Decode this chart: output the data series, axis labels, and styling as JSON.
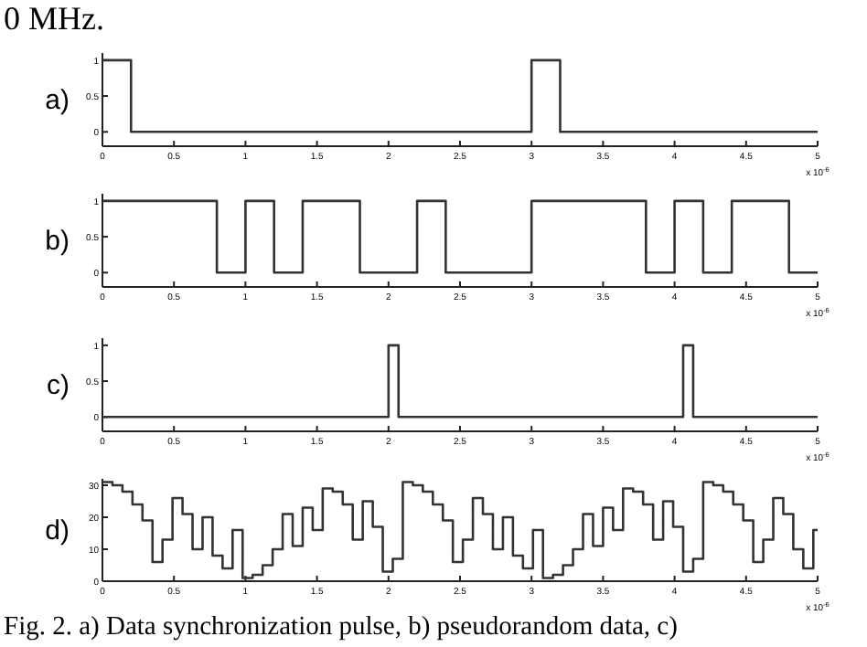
{
  "chart_data": [
    {
      "type": "step",
      "ylabel": "a)",
      "xlabel": "x 10$^{-6}$",
      "color": "#333333",
      "annotations": [
        "0 MHz."
      ],
      "x": [
        0,
        0.2,
        3.0,
        3.2,
        5
      ],
      "values": [
        1,
        0,
        1,
        0,
        0
      ],
      "xlim": [
        0,
        5
      ],
      "xticks": [
        0,
        0.5,
        1,
        1.5,
        2,
        2.5,
        3,
        3.5,
        4,
        4.5,
        5
      ],
      "ylim": [
        -0.2,
        1.1
      ],
      "yticks": [
        0,
        0.5,
        1
      ]
    },
    {
      "type": "step",
      "ylabel": "b)",
      "xlabel": "x 10$^{-6}$",
      "color": "#333333",
      "x": [
        0,
        0.8,
        1.0,
        1.2,
        1.4,
        1.8,
        2.2,
        2.4,
        3.0,
        3.8,
        4.0,
        4.2,
        4.4,
        4.8,
        5
      ],
      "values": [
        1,
        0,
        1,
        0,
        1,
        0,
        1,
        0,
        1,
        0,
        1,
        0,
        1,
        0,
        0
      ],
      "xlim": [
        0,
        5
      ],
      "xticks": [
        0,
        0.5,
        1,
        1.5,
        2,
        2.5,
        3,
        3.5,
        4,
        4.5,
        5
      ],
      "ylim": [
        -0.2,
        1.1
      ],
      "yticks": [
        0,
        0.5,
        1
      ]
    },
    {
      "type": "step",
      "ylabel": "c)",
      "xlabel": "x 10$^{-6}$",
      "color": "#333333",
      "x": [
        0,
        2.0,
        2.07,
        4.06,
        4.13,
        5
      ],
      "values": [
        0,
        1,
        0,
        1,
        0,
        0
      ],
      "xlim": [
        0,
        5
      ],
      "xticks": [
        0,
        0.5,
        1,
        1.5,
        2,
        2.5,
        3,
        3.5,
        4,
        4.5,
        5
      ],
      "ylim": [
        -0.2,
        1.1
      ],
      "yticks": [
        0,
        0.5,
        1
      ]
    },
    {
      "type": "step",
      "ylabel": "d)",
      "xlabel": "x 10$^{-6}$",
      "color": "#333333",
      "annotations": [
        "Fig. 2. a) Data synchronization pulse, b) pseudorandom data, c)"
      ],
      "x": [
        0,
        0.07,
        0.14,
        0.21,
        0.28,
        0.35,
        0.42,
        0.49,
        0.56,
        0.63,
        0.7,
        0.77,
        0.84,
        0.91,
        0.98,
        1.05,
        1.12,
        1.19,
        1.26,
        1.33,
        1.4,
        1.47,
        1.54,
        1.61,
        1.68,
        1.75,
        1.82,
        1.89,
        1.96,
        2.03,
        2.1,
        2.17,
        2.24,
        2.31,
        2.38,
        2.45,
        2.52,
        2.59,
        2.66,
        2.73,
        2.8,
        2.87,
        2.94,
        3.01,
        3.08,
        3.15,
        3.22,
        3.29,
        3.36,
        3.43,
        3.5,
        3.57,
        3.64,
        3.71,
        3.78,
        3.85,
        3.92,
        3.99,
        4.06,
        4.13,
        4.2,
        4.27,
        4.34,
        4.41,
        4.48,
        4.55,
        4.62,
        4.69,
        4.76,
        4.83,
        4.9,
        4.97,
        5
      ],
      "values": [
        31,
        30,
        28,
        24,
        19,
        6,
        13,
        26,
        21,
        10,
        20,
        8,
        4,
        16,
        1,
        2,
        5,
        10,
        21,
        11,
        23,
        16,
        29,
        28,
        24,
        13,
        25,
        17,
        3,
        7,
        31,
        30,
        28,
        24,
        19,
        6,
        13,
        26,
        21,
        10,
        20,
        8,
        4,
        16,
        1,
        2,
        5,
        10,
        21,
        11,
        23,
        16,
        29,
        28,
        24,
        13,
        25,
        17,
        3,
        7,
        31,
        30,
        28,
        24,
        19,
        6,
        13,
        26,
        21,
        10,
        4,
        16,
        16
      ],
      "xlim": [
        0,
        5
      ],
      "xticks": [
        0,
        0.5,
        1,
        1.5,
        2,
        2.5,
        3,
        3.5,
        4,
        4.5,
        5
      ],
      "ylim": [
        0,
        32
      ],
      "yticks": [
        0,
        10,
        20,
        30
      ]
    }
  ]
}
